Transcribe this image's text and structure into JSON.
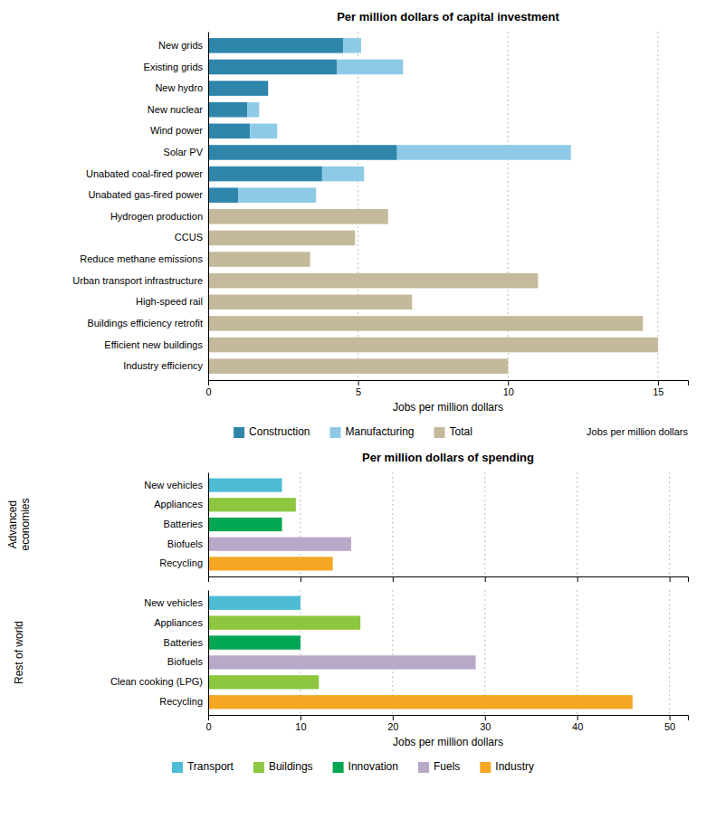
{
  "chart_data": [
    {
      "type": "bar",
      "orientation": "horizontal",
      "stacked": true,
      "title": "Per million dollars of capital investment",
      "xlabel": "Jobs per million dollars",
      "annotations": [
        "Jobs per million dollars"
      ],
      "categories": [
        "New grids",
        "Existing grids",
        "New hydro",
        "New nuclear",
        "Wind power",
        "Solar PV",
        "Unabated coal-fired power",
        "Unabated gas-fired power",
        "Hydrogen production",
        "CCUS",
        "Reduce methane emissions",
        "Urban transport infrastructure",
        "High-speed rail",
        "Buildings efficiency retrofit",
        "Efficient new buildings",
        "Industry efficiency"
      ],
      "series": [
        {
          "name": "Construction",
          "color": "#2e86ab",
          "values": [
            4.5,
            4.3,
            2.0,
            1.3,
            1.4,
            6.3,
            3.8,
            1.0,
            0,
            0,
            0,
            0,
            0,
            0,
            0,
            0
          ]
        },
        {
          "name": "Manufacturing",
          "color": "#8ecae6",
          "values": [
            0.6,
            2.2,
            0.0,
            0.4,
            0.9,
            5.8,
            1.4,
            2.6,
            0,
            0,
            0,
            0,
            0,
            0,
            0,
            0
          ]
        },
        {
          "name": "Total",
          "color": "#c4b99a",
          "values": [
            0,
            0,
            0,
            0,
            0,
            0,
            0,
            0,
            6.0,
            4.9,
            3.4,
            11.0,
            6.8,
            14.5,
            15.0,
            10.0
          ]
        }
      ],
      "xlim": [
        0,
        16
      ],
      "xticks": [
        0,
        5,
        10,
        15
      ],
      "grid": true,
      "legend": "bottom"
    },
    {
      "type": "bar",
      "orientation": "horizontal",
      "title": "Per million dollars of spending",
      "ylabel": "Advanced\neconomies",
      "categories": [
        "New vehicles",
        "Appliances",
        "Batteries",
        "Biofuels",
        "Recycling"
      ],
      "values": [
        8.0,
        9.5,
        8.0,
        15.5,
        13.5
      ],
      "colors": [
        "#4dbcd4",
        "#8dc63f",
        "#00a651",
        "#b8a9c9",
        "#f5a623"
      ],
      "xlim": [
        0,
        52
      ],
      "xticks": [
        0,
        10,
        20,
        30,
        40,
        50
      ],
      "grid": true,
      "tick_labels": "y"
    },
    {
      "type": "bar",
      "orientation": "horizontal",
      "ylabel": "Rest of world",
      "xlabel": "Jobs per million dollars",
      "categories": [
        "New vehicles",
        "Appliances",
        "Batteries",
        "Biofuels",
        "Clean cooking (LPG)",
        "Recycling"
      ],
      "series": [
        {
          "name": "Transport",
          "color": "#4dbcd4",
          "values": [
            10.0,
            null,
            null,
            null,
            null,
            null
          ]
        },
        {
          "name": "Buildings",
          "color": "#8dc63f",
          "values": [
            null,
            16.5,
            null,
            null,
            12.0,
            null
          ]
        },
        {
          "name": "Innovation",
          "color": "#00a651",
          "values": [
            null,
            null,
            10.0,
            null,
            null,
            null
          ]
        },
        {
          "name": "Fuels",
          "color": "#b8a9c9",
          "values": [
            null,
            null,
            null,
            29.0,
            null,
            null
          ]
        },
        {
          "name": "Industry",
          "color": "#f5a623",
          "values": [
            null,
            null,
            null,
            null,
            null,
            46.0
          ]
        }
      ],
      "xlim": [
        0,
        52
      ],
      "xticks": [
        0,
        10,
        20,
        30,
        40,
        50
      ],
      "grid": true,
      "legend": "bottom"
    }
  ]
}
